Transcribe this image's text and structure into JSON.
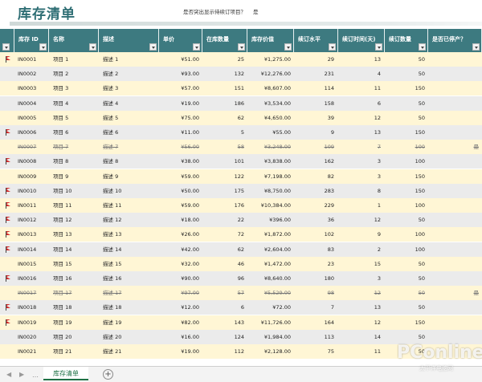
{
  "title": "库存清单",
  "question": "是否突出显示待续订项目？",
  "answer": "是",
  "headers": [
    "库存 ID",
    "名称",
    "描述",
    "单价",
    "在库数量",
    "库存价值",
    "续订水平",
    "续订时间(天)",
    "续订数量",
    "是否已停产？"
  ],
  "rows": [
    {
      "flag": true,
      "id": "IN0001",
      "name": "项目 1",
      "desc": "描述 1",
      "price": "¥51.00",
      "qty": "25",
      "value": "¥1,275.00",
      "level": "29",
      "days": "13",
      "reorder": "50",
      "disc": "",
      "struck": false
    },
    {
      "flag": false,
      "id": "IN0002",
      "name": "项目 2",
      "desc": "描述 2",
      "price": "¥93.00",
      "qty": "132",
      "value": "¥12,276.00",
      "level": "231",
      "days": "4",
      "reorder": "50",
      "disc": "",
      "struck": false
    },
    {
      "flag": false,
      "id": "IN0003",
      "name": "项目 3",
      "desc": "描述 3",
      "price": "¥57.00",
      "qty": "151",
      "value": "¥8,607.00",
      "level": "114",
      "days": "11",
      "reorder": "150",
      "disc": "",
      "struck": false
    },
    {
      "flag": false,
      "id": "IN0004",
      "name": "项目 4",
      "desc": "描述 4",
      "price": "¥19.00",
      "qty": "186",
      "value": "¥3,534.00",
      "level": "158",
      "days": "6",
      "reorder": "50",
      "disc": "",
      "struck": false
    },
    {
      "flag": false,
      "id": "IN0005",
      "name": "项目 5",
      "desc": "描述 5",
      "price": "¥75.00",
      "qty": "62",
      "value": "¥4,650.00",
      "level": "39",
      "days": "12",
      "reorder": "50",
      "disc": "",
      "struck": false
    },
    {
      "flag": true,
      "id": "IN0006",
      "name": "项目 6",
      "desc": "描述 6",
      "price": "¥11.00",
      "qty": "5",
      "value": "¥55.00",
      "level": "9",
      "days": "13",
      "reorder": "150",
      "disc": "",
      "struck": false
    },
    {
      "flag": false,
      "id": "IN0007",
      "name": "项目 7",
      "desc": "描述 7",
      "price": "¥56.00",
      "qty": "58",
      "value": "¥3,248.00",
      "level": "109",
      "days": "7",
      "reorder": "100",
      "disc": "是",
      "struck": true
    },
    {
      "flag": true,
      "id": "IN0008",
      "name": "项目 8",
      "desc": "描述 8",
      "price": "¥38.00",
      "qty": "101",
      "value": "¥3,838.00",
      "level": "162",
      "days": "3",
      "reorder": "100",
      "disc": "",
      "struck": false
    },
    {
      "flag": false,
      "id": "IN0009",
      "name": "项目 9",
      "desc": "描述 9",
      "price": "¥59.00",
      "qty": "122",
      "value": "¥7,198.00",
      "level": "82",
      "days": "3",
      "reorder": "150",
      "disc": "",
      "struck": false
    },
    {
      "flag": true,
      "id": "IN0010",
      "name": "项目 10",
      "desc": "描述 10",
      "price": "¥50.00",
      "qty": "175",
      "value": "¥8,750.00",
      "level": "283",
      "days": "8",
      "reorder": "150",
      "disc": "",
      "struck": false
    },
    {
      "flag": true,
      "id": "IN0011",
      "name": "项目 11",
      "desc": "描述 11",
      "price": "¥59.00",
      "qty": "176",
      "value": "¥10,384.00",
      "level": "229",
      "days": "1",
      "reorder": "100",
      "disc": "",
      "struck": false
    },
    {
      "flag": true,
      "id": "IN0012",
      "name": "项目 12",
      "desc": "描述 12",
      "price": "¥18.00",
      "qty": "22",
      "value": "¥396.00",
      "level": "36",
      "days": "12",
      "reorder": "50",
      "disc": "",
      "struck": false
    },
    {
      "flag": true,
      "id": "IN0013",
      "name": "项目 13",
      "desc": "描述 13",
      "price": "¥26.00",
      "qty": "72",
      "value": "¥1,872.00",
      "level": "102",
      "days": "9",
      "reorder": "100",
      "disc": "",
      "struck": false
    },
    {
      "flag": true,
      "id": "IN0014",
      "name": "项目 14",
      "desc": "描述 14",
      "price": "¥42.00",
      "qty": "62",
      "value": "¥2,604.00",
      "level": "83",
      "days": "2",
      "reorder": "100",
      "disc": "",
      "struck": false
    },
    {
      "flag": false,
      "id": "IN0015",
      "name": "项目 15",
      "desc": "描述 15",
      "price": "¥32.00",
      "qty": "46",
      "value": "¥1,472.00",
      "level": "23",
      "days": "15",
      "reorder": "50",
      "disc": "",
      "struck": false
    },
    {
      "flag": true,
      "id": "IN0016",
      "name": "项目 16",
      "desc": "描述 16",
      "price": "¥90.00",
      "qty": "96",
      "value": "¥8,640.00",
      "level": "180",
      "days": "3",
      "reorder": "50",
      "disc": "",
      "struck": false
    },
    {
      "flag": false,
      "id": "IN0017",
      "name": "项目 17",
      "desc": "描述 17",
      "price": "¥97.00",
      "qty": "57",
      "value": "¥5,529.00",
      "level": "98",
      "days": "12",
      "reorder": "50",
      "disc": "是",
      "struck": true
    },
    {
      "flag": true,
      "id": "IN0018",
      "name": "项目 18",
      "desc": "描述 18",
      "price": "¥12.00",
      "qty": "6",
      "value": "¥72.00",
      "level": "7",
      "days": "13",
      "reorder": "50",
      "disc": "",
      "struck": false
    },
    {
      "flag": true,
      "id": "IN0019",
      "name": "项目 19",
      "desc": "描述 19",
      "price": "¥82.00",
      "qty": "143",
      "value": "¥11,726.00",
      "level": "164",
      "days": "12",
      "reorder": "150",
      "disc": "",
      "struck": false
    },
    {
      "flag": false,
      "id": "IN0020",
      "name": "项目 20",
      "desc": "描述 20",
      "price": "¥16.00",
      "qty": "124",
      "value": "¥1,984.00",
      "level": "113",
      "days": "14",
      "reorder": "50",
      "disc": "",
      "struck": false
    },
    {
      "flag": false,
      "id": "IN0021",
      "name": "项目 21",
      "desc": "描述 21",
      "price": "¥19.00",
      "qty": "112",
      "value": "¥2,128.00",
      "level": "75",
      "days": "11",
      "reorder": "50",
      "disc": "",
      "struck": false
    }
  ],
  "tab": {
    "label": "库存清单",
    "add_symbol": "+"
  },
  "nav": {
    "left": "◀",
    "right": "▶",
    "more": "…"
  },
  "watermark": {
    "brand": "PConline",
    "tagline": "太平洋电脑网"
  }
}
